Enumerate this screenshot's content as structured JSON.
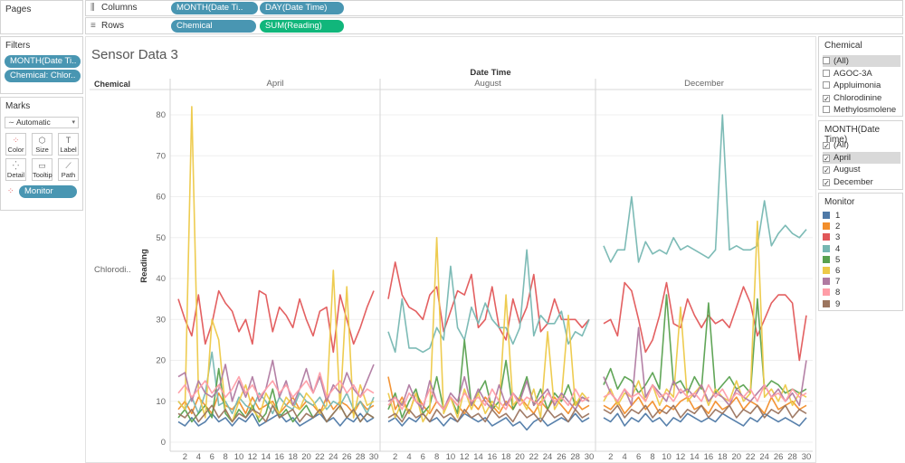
{
  "shelves": {
    "pages_label": "Pages",
    "columns_label": "Columns",
    "rows_label": "Rows",
    "columns_pills": [
      "MONTH(Date Ti..",
      "DAY(Date Time)"
    ],
    "rows_pills": [
      "Chemical",
      "SUM(Reading)"
    ]
  },
  "filters": {
    "title": "Filters",
    "pills": [
      "MONTH(Date Ti..",
      "Chemical: Chlor.."
    ]
  },
  "marks": {
    "title": "Marks",
    "type": "Automatic",
    "buttons": [
      "Color",
      "Size",
      "Label",
      "Detail",
      "Tooltip",
      "Path"
    ],
    "field_pill": "Monitor"
  },
  "chemical_filter": {
    "title": "Chemical",
    "items": [
      {
        "label": "(All)",
        "checked": false
      },
      {
        "label": "AGOC-3A",
        "checked": false
      },
      {
        "label": "Appluimonia",
        "checked": false
      },
      {
        "label": "Chlorodinine",
        "checked": true
      },
      {
        "label": "Methylosmolene",
        "checked": false
      }
    ]
  },
  "month_filter": {
    "title": "MONTH(Date Time)",
    "items": [
      {
        "label": "(All)",
        "checked": true
      },
      {
        "label": "April",
        "checked": true
      },
      {
        "label": "August",
        "checked": true
      },
      {
        "label": "December",
        "checked": true
      }
    ]
  },
  "monitor_legend": {
    "title": "Monitor",
    "items": [
      {
        "label": "1",
        "color": "#4e79a7"
      },
      {
        "label": "2",
        "color": "#f28e2b"
      },
      {
        "label": "3",
        "color": "#e15759"
      },
      {
        "label": "4",
        "color": "#76b7b2"
      },
      {
        "label": "5",
        "color": "#59a14f"
      },
      {
        "label": "6",
        "color": "#edc948"
      },
      {
        "label": "7",
        "color": "#b07aa1"
      },
      {
        "label": "8",
        "color": "#ff9da7"
      },
      {
        "label": "9",
        "color": "#9c755f"
      }
    ]
  },
  "chart_data": {
    "type": "line",
    "title": "Sensor Data 3",
    "column_header": "Date Time",
    "row_header": "Chemical",
    "row_value": "Chlorodi..",
    "ylabel": "Reading",
    "ylim": [
      0,
      85
    ],
    "y_ticks": [
      0,
      10,
      20,
      30,
      40,
      50,
      60,
      70,
      80
    ],
    "x_tick_labels": [
      "2",
      "4",
      "6",
      "8",
      "10",
      "12",
      "14",
      "16",
      "18",
      "20",
      "22",
      "24",
      "26",
      "28",
      "30"
    ],
    "panels": [
      {
        "month": "April",
        "series": [
          {
            "name": "1",
            "values": [
              5,
              4,
              6,
              4,
              5,
              7,
              5,
              6,
              4,
              6,
              5,
              7,
              4,
              5,
              6,
              7,
              5,
              6,
              4,
              5,
              6,
              7,
              5,
              6,
              4,
              6,
              5,
              7,
              5,
              6
            ]
          },
          {
            "name": "2",
            "values": [
              8,
              10,
              7,
              11,
              9,
              7,
              12,
              9,
              8,
              10,
              7,
              11,
              8,
              9,
              10,
              7,
              9,
              11,
              8,
              10,
              9,
              7,
              11,
              8,
              10,
              9,
              7,
              10,
              8,
              9
            ]
          },
          {
            "name": "3",
            "values": [
              35,
              30,
              26,
              36,
              24,
              29,
              37,
              34,
              32,
              27,
              30,
              24,
              37,
              36,
              27,
              33,
              31,
              28,
              35,
              30,
              26,
              32,
              33,
              22,
              36,
              30,
              24,
              28,
              33,
              37
            ]
          },
          {
            "name": "4",
            "values": [
              10,
              8,
              11,
              7,
              12,
              22,
              9,
              10,
              7,
              11,
              9,
              8,
              12,
              10,
              7,
              11,
              9,
              8,
              12,
              10,
              9,
              11,
              8,
              10,
              9,
              12,
              8,
              10,
              7,
              11
            ]
          },
          {
            "name": "5",
            "values": [
              6,
              8,
              5,
              7,
              9,
              6,
              18,
              7,
              5,
              8,
              6,
              9,
              5,
              7,
              13,
              6,
              8,
              5,
              7,
              9,
              6,
              8,
              5,
              7,
              9,
              6,
              8,
              5,
              7,
              6
            ]
          },
          {
            "name": "6",
            "values": [
              10,
              8,
              82,
              12,
              6,
              30,
              25,
              8,
              5,
              10,
              14,
              8,
              6,
              12,
              9,
              7,
              11,
              9,
              8,
              12,
              10,
              7,
              9,
              42,
              8,
              38,
              6,
              14,
              9,
              10
            ]
          },
          {
            "name": "7",
            "values": [
              16,
              17,
              10,
              15,
              12,
              11,
              13,
              19,
              10,
              15,
              11,
              16,
              10,
              13,
              20,
              11,
              15,
              9,
              13,
              18,
              12,
              16,
              10,
              14,
              12,
              17,
              13,
              11,
              15,
              19
            ]
          },
          {
            "name": "8",
            "values": [
              12,
              14,
              11,
              13,
              15,
              12,
              14,
              11,
              13,
              16,
              12,
              14,
              11,
              13,
              15,
              12,
              14,
              11,
              13,
              15,
              12,
              17,
              11,
              13,
              15,
              12,
              14,
              11,
              13,
              12
            ]
          },
          {
            "name": "9",
            "values": [
              7,
              6,
              8,
              5,
              7,
              9,
              6,
              8,
              5,
              7,
              6,
              8,
              7,
              5,
              9,
              6,
              7,
              8,
              5,
              7,
              6,
              8,
              5,
              7,
              9,
              6,
              8,
              5,
              7,
              6
            ]
          }
        ]
      },
      {
        "month": "August",
        "series": [
          {
            "name": "1",
            "values": [
              5,
              6,
              4,
              6,
              5,
              7,
              5,
              6,
              4,
              6,
              5,
              7,
              6,
              5,
              6,
              4,
              5,
              6,
              4,
              5,
              3,
              5,
              6,
              4,
              5,
              6,
              5,
              7,
              5,
              6
            ]
          },
          {
            "name": "2",
            "values": [
              16,
              8,
              11,
              7,
              12,
              9,
              7,
              10,
              8,
              11,
              9,
              7,
              10,
              8,
              11,
              9,
              7,
              10,
              8,
              11,
              9,
              7,
              10,
              8,
              11,
              9,
              7,
              10,
              8,
              9
            ]
          },
          {
            "name": "3",
            "values": [
              35,
              44,
              36,
              33,
              32,
              30,
              36,
              38,
              27,
              32,
              37,
              36,
              41,
              28,
              30,
              38,
              28,
              25,
              35,
              29,
              33,
              41,
              27,
              29,
              35,
              30,
              30,
              30,
              28,
              30
            ]
          },
          {
            "name": "4",
            "values": [
              27,
              22,
              35,
              23,
              23,
              22,
              23,
              28,
              25,
              43,
              28,
              25,
              33,
              29,
              34,
              30,
              28,
              28,
              24,
              28,
              47,
              26,
              31,
              29,
              29,
              32,
              24,
              27,
              26,
              30
            ]
          },
          {
            "name": "5",
            "values": [
              8,
              12,
              6,
              10,
              13,
              7,
              9,
              16,
              8,
              11,
              7,
              25,
              9,
              12,
              15,
              8,
              10,
              20,
              8,
              11,
              16,
              9,
              13,
              8,
              12,
              10,
              14,
              9,
              11,
              10
            ]
          },
          {
            "name": "6",
            "values": [
              12,
              6,
              10,
              7,
              12,
              5,
              8,
              50,
              7,
              11,
              6,
              13,
              8,
              12,
              7,
              10,
              8,
              36,
              9,
              11,
              8,
              13,
              6,
              27,
              8,
              11,
              31,
              9,
              12,
              10
            ]
          },
          {
            "name": "7",
            "values": [
              10,
              11,
              9,
              14,
              10,
              8,
              15,
              10,
              8,
              12,
              10,
              16,
              9,
              13,
              10,
              8,
              14,
              9,
              12,
              10,
              15,
              9,
              11,
              13,
              9,
              12,
              10,
              8,
              11,
              10
            ]
          },
          {
            "name": "8",
            "values": [
              9,
              11,
              8,
              12,
              10,
              9,
              13,
              10,
              8,
              11,
              9,
              12,
              10,
              11,
              9,
              13,
              10,
              8,
              12,
              9,
              11,
              10,
              9,
              12,
              10,
              11,
              9,
              13,
              10,
              11
            ]
          },
          {
            "name": "9",
            "values": [
              6,
              7,
              5,
              8,
              6,
              7,
              5,
              8,
              6,
              7,
              5,
              8,
              6,
              7,
              5,
              8,
              6,
              7,
              5,
              8,
              6,
              7,
              5,
              8,
              6,
              7,
              5,
              8,
              6,
              7
            ]
          }
        ]
      },
      {
        "month": "December",
        "series": [
          {
            "name": "1",
            "values": [
              6,
              5,
              7,
              4,
              6,
              5,
              7,
              5,
              6,
              4,
              6,
              5,
              7,
              6,
              5,
              6,
              5,
              7,
              6,
              5,
              4,
              6,
              5,
              7,
              6,
              5,
              6,
              5,
              4,
              6
            ]
          },
          {
            "name": "2",
            "values": [
              9,
              8,
              10,
              7,
              9,
              11,
              8,
              10,
              7,
              9,
              8,
              10,
              11,
              8,
              9,
              7,
              10,
              8,
              9,
              11,
              8,
              10,
              9,
              7,
              11,
              8,
              9,
              10,
              8,
              9
            ]
          },
          {
            "name": "3",
            "values": [
              29,
              30,
              26,
              39,
              37,
              30,
              22,
              25,
              31,
              39,
              29,
              28,
              35,
              31,
              28,
              31,
              29,
              30,
              28,
              33,
              38,
              34,
              26,
              30,
              34,
              36,
              36,
              34,
              20,
              31
            ]
          },
          {
            "name": "4",
            "values": [
              48,
              44,
              47,
              47,
              60,
              44,
              49,
              46,
              47,
              46,
              50,
              47,
              48,
              47,
              46,
              45,
              47,
              80,
              47,
              48,
              47,
              47,
              48,
              59,
              48,
              51,
              53,
              51,
              50,
              52
            ]
          },
          {
            "name": "5",
            "values": [
              14,
              18,
              13,
              16,
              15,
              12,
              14,
              17,
              13,
              36,
              14,
              15,
              12,
              16,
              13,
              34,
              12,
              14,
              16,
              13,
              14,
              12,
              35,
              13,
              15,
              14,
              12,
              13,
              12,
              13
            ]
          },
          {
            "name": "6",
            "values": [
              10,
              13,
              9,
              12,
              11,
              15,
              10,
              14,
              9,
              13,
              11,
              33,
              10,
              12,
              14,
              9,
              13,
              11,
              10,
              15,
              10,
              12,
              54,
              11,
              13,
              10,
              14,
              9,
              12,
              11
            ]
          },
          {
            "name": "7",
            "values": [
              16,
              12,
              10,
              13,
              9,
              28,
              11,
              14,
              12,
              10,
              15,
              12,
              13,
              11,
              14,
              10,
              12,
              11,
              9,
              13,
              11,
              10,
              12,
              14,
              11,
              13,
              10,
              12,
              9,
              20
            ]
          },
          {
            "name": "8",
            "values": [
              11,
              12,
              10,
              13,
              11,
              12,
              10,
              14,
              11,
              12,
              10,
              13,
              11,
              12,
              10,
              14,
              11,
              13,
              10,
              12,
              11,
              13,
              10,
              14,
              11,
              12,
              10,
              13,
              11,
              12
            ]
          },
          {
            "name": "9",
            "values": [
              8,
              7,
              9,
              6,
              8,
              7,
              9,
              6,
              8,
              7,
              9,
              6,
              8,
              7,
              9,
              6,
              8,
              7,
              9,
              6,
              8,
              7,
              9,
              6,
              8,
              7,
              9,
              6,
              8,
              7
            ]
          }
        ]
      }
    ]
  }
}
